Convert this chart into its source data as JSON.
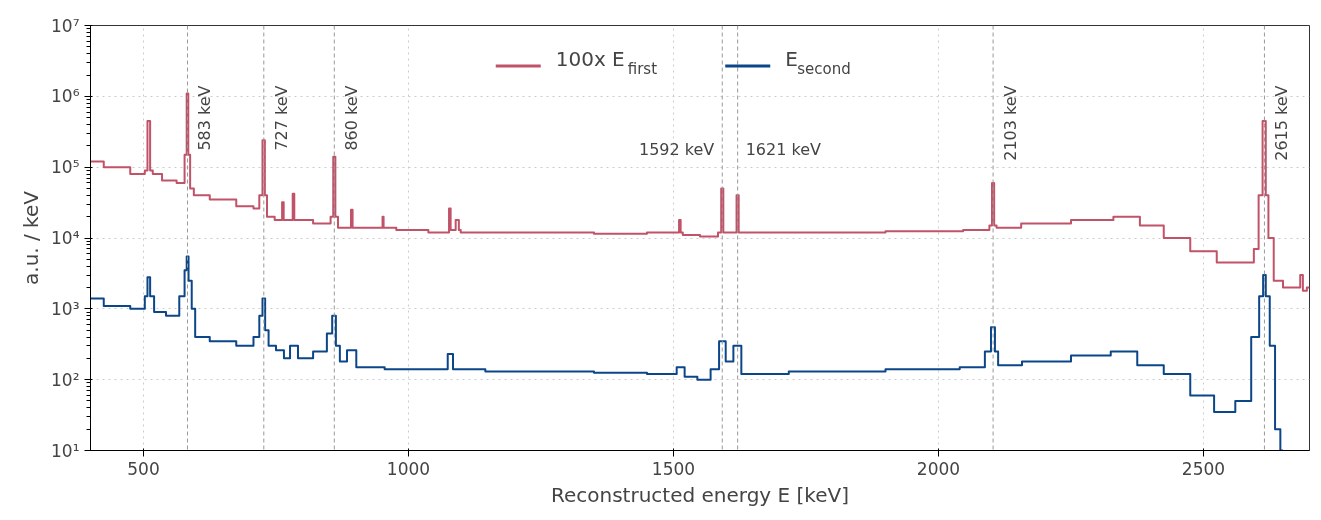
{
  "chart_data": {
    "type": "step",
    "xlabel": "Reconstructed energy E [keV]",
    "ylabel": "a.u. / keV",
    "log": "y",
    "grid": true,
    "legend": "top",
    "xlim": [
      400,
      2700
    ],
    "xticks": [
      500,
      1000,
      1500,
      2000,
      2500
    ],
    "ylim": [
      10,
      10000000
    ],
    "yticks": [
      {
        "value": 10,
        "label": "10¹"
      },
      {
        "value": 100,
        "label": "10²"
      },
      {
        "value": 1000,
        "label": "10³"
      },
      {
        "value": 10000,
        "label": "10⁴"
      },
      {
        "value": 100000,
        "label": "10⁵"
      },
      {
        "value": 1000000,
        "label": "10⁶"
      },
      {
        "value": 10000000,
        "label": "10⁷"
      }
    ],
    "series": [
      {
        "name": "100x E$_{first}$",
        "color": "#c05368",
        "x": [
          400,
          450,
          500,
          505,
          510,
          515,
          520,
          550,
          575,
          580,
          583,
          586,
          590,
          600,
          650,
          700,
          715,
          722,
          727,
          731,
          735,
          760,
          763,
          766,
          770,
          780,
          783,
          786,
          790,
          850,
          856,
          860,
          864,
          870,
          890,
          893,
          896,
          900,
          950,
          952,
          954,
          1000,
          1075,
          1078,
          1081,
          1085,
          1093,
          1097,
          1100,
          1200,
          1300,
          1400,
          1500,
          1509,
          1512,
          1515,
          1520,
          1580,
          1588,
          1592,
          1596,
          1600,
          1612,
          1617,
          1621,
          1625,
          1630,
          1800,
          2000,
          2093,
          2099,
          2103,
          2107,
          2112,
          2200,
          2300,
          2360,
          2400,
          2450,
          2500,
          2550,
          2590,
          2600,
          2608,
          2615,
          2620,
          2625,
          2640,
          2660,
          2680,
          2685,
          2690,
          2700
        ],
        "values": [
          120000,
          100000,
          80000,
          90000,
          450000,
          90000,
          80000,
          65000,
          60000,
          150000,
          1100000,
          150000,
          50000,
          40000,
          35000,
          28000,
          26000,
          40000,
          240000,
          40000,
          20000,
          18000,
          32000,
          18000,
          18000,
          18000,
          42000,
          18000,
          18000,
          16000,
          20000,
          140000,
          20000,
          14000,
          14000,
          25000,
          14000,
          14000,
          14000,
          20000,
          14000,
          13000,
          12000,
          26000,
          13000,
          13000,
          18000,
          13000,
          12000,
          12000,
          12000,
          11500,
          12000,
          12000,
          18000,
          12000,
          11000,
          10500,
          12000,
          50000,
          12000,
          12000,
          12000,
          12000,
          40000,
          12000,
          12000,
          12000,
          12500,
          13000,
          15000,
          60000,
          15000,
          14000,
          16000,
          18000,
          20000,
          15000,
          10000,
          6500,
          4500,
          4500,
          7000,
          40000,
          450000,
          40000,
          10000,
          2500,
          2000,
          2000,
          3000,
          1800,
          2000
        ]
      },
      {
        "name": "E$_{second}$",
        "color": "#0b4689",
        "x": [
          400,
          450,
          500,
          505,
          510,
          515,
          525,
          560,
          575,
          580,
          583,
          587,
          595,
          600,
          650,
          700,
          715,
          722,
          727,
          732,
          740,
          760,
          770,
          783,
          800,
          840,
          852,
          860,
          866,
          875,
          893,
          910,
          1000,
          1070,
          1078,
          1090,
          1200,
          1300,
          1400,
          1500,
          1512,
          1530,
          1560,
          1580,
          1592,
          1605,
          1621,
          1635,
          1800,
          2000,
          2080,
          2095,
          2103,
          2110,
          2115,
          2200,
          2300,
          2350,
          2400,
          2450,
          2500,
          2540,
          2580,
          2600,
          2610,
          2615,
          2620,
          2630,
          2640,
          2650
        ],
        "values": [
          1400,
          1100,
          1000,
          1500,
          2800,
          1500,
          900,
          800,
          1500,
          3500,
          5500,
          2500,
          1000,
          400,
          350,
          300,
          400,
          800,
          1400,
          500,
          300,
          260,
          200,
          300,
          200,
          250,
          450,
          800,
          300,
          180,
          260,
          150,
          140,
          140,
          230,
          140,
          130,
          130,
          125,
          120,
          150,
          110,
          100,
          140,
          350,
          180,
          300,
          120,
          130,
          140,
          150,
          250,
          550,
          250,
          160,
          180,
          220,
          250,
          160,
          120,
          60,
          35,
          50,
          400,
          1500,
          3000,
          1500,
          300,
          20,
          10
        ]
      }
    ],
    "ref_lines": [
      {
        "axis": "x",
        "value": 583,
        "label": "583 keV",
        "color": "#999999",
        "line_style": "dashed"
      },
      {
        "axis": "x",
        "value": 727,
        "label": "727 keV",
        "color": "#999999",
        "line_style": "dashed"
      },
      {
        "axis": "x",
        "value": 860,
        "label": "860 keV",
        "color": "#999999",
        "line_style": "dashed"
      },
      {
        "axis": "x",
        "value": 1592,
        "label": "1592 keV",
        "color": "#999999",
        "line_style": "dashed"
      },
      {
        "axis": "x",
        "value": 1621,
        "label": "1621 keV",
        "color": "#999999",
        "line_style": "dashed"
      },
      {
        "axis": "x",
        "value": 2103,
        "label": "2103 keV",
        "color": "#999999",
        "line_style": "dashed"
      },
      {
        "axis": "x",
        "value": 2615,
        "label": "2615 keV",
        "color": "#999999",
        "line_style": "dashed"
      }
    ]
  }
}
